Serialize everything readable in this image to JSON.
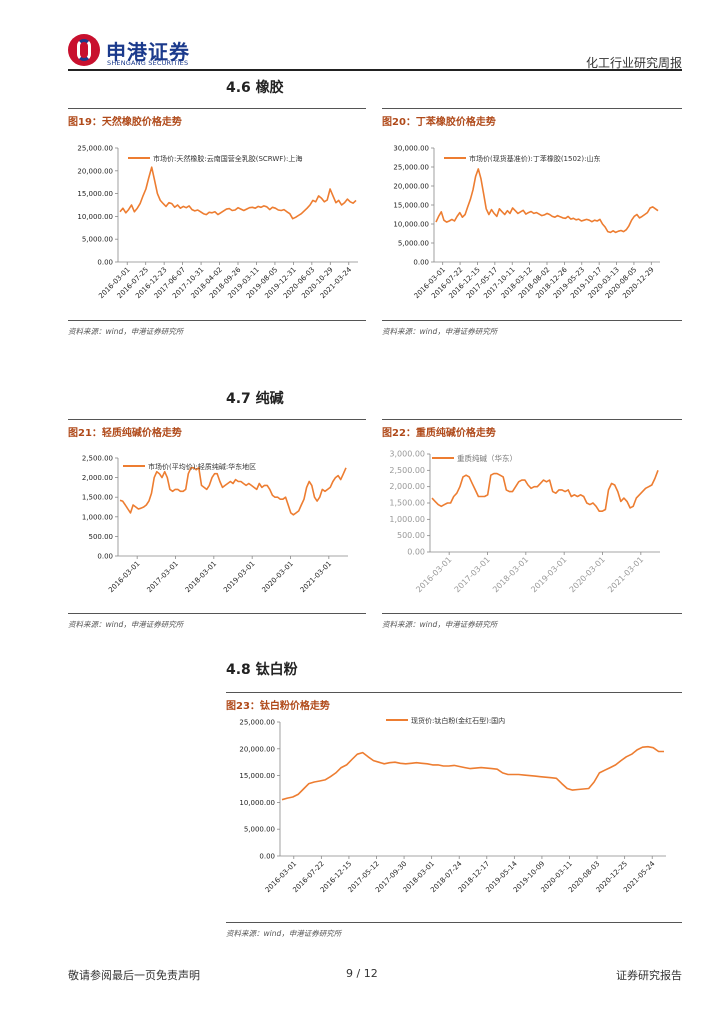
{
  "header": {
    "company_cn": "申港证券",
    "company_en": "SHENGANG SECURITIES",
    "report_type": "化工行业研究周报"
  },
  "sections": {
    "s46": "4.6 橡胶",
    "s47": "4.7 纯碱",
    "s48": "4.8 钛白粉"
  },
  "colors": {
    "line": "#ed7d31",
    "title": "#b04a1a"
  },
  "figures": {
    "f19": {
      "title": "图19：天然橡胶价格走势",
      "source": "资料来源：wind，申港证券研究所"
    },
    "f20": {
      "title": "图20：丁苯橡胶价格走势",
      "source": "资料来源：wind，申港证券研究所"
    },
    "f21": {
      "title": "图21：轻质纯碱价格走势",
      "source": "资料来源：wind，申港证券研究所"
    },
    "f22": {
      "title": "图22：重质纯碱价格走势",
      "source": "资料来源：wind，申港证券研究所"
    },
    "f23": {
      "title": "图23：钛白粉价格走势",
      "source": "资料来源：wind，申港证券研究所"
    }
  },
  "chart_data": [
    {
      "id": "c19",
      "type": "line",
      "legend": "市场价:天然橡胶:云南国营全乳胶(SCRWF):上海",
      "ylim": [
        0,
        25000
      ],
      "yticks": [
        "0.00",
        "5,000.00",
        "10,000.00",
        "15,000.00",
        "20,000.00",
        "25,000.00"
      ],
      "xticks": [
        "2016-03-01",
        "2016-07-25",
        "2016-12-23",
        "2017-06-07",
        "2017-10-31",
        "2018-04-02",
        "2018-09-26",
        "2019-03-11",
        "2019-08-05",
        "2019-12-31",
        "2020-06-03",
        "2020-10-29",
        "2021-03-24"
      ],
      "values": [
        11000,
        11800,
        10800,
        11500,
        12500,
        11000,
        11800,
        12800,
        14500,
        16000,
        18500,
        20800,
        18000,
        15000,
        13500,
        12800,
        12200,
        13000,
        12800,
        12000,
        12500,
        11800,
        12200,
        11900,
        12300,
        11500,
        11200,
        11400,
        11000,
        10600,
        10400,
        10900,
        10800,
        11000,
        10400,
        10800,
        11200,
        11600,
        11700,
        11300,
        11400,
        11900,
        11600,
        11300,
        11600,
        11900,
        12000,
        11800,
        12200,
        12000,
        12300,
        12100,
        11500,
        12000,
        11800,
        11400,
        11300,
        11500,
        11000,
        10600,
        9500,
        9800,
        10200,
        10600,
        11200,
        11800,
        12500,
        13500,
        13200,
        14500,
        14000,
        13200,
        13600,
        16000,
        14500,
        13000,
        13500,
        12500,
        13000,
        13800,
        13200,
        12900,
        13500
      ]
    },
    {
      "id": "c20",
      "type": "line",
      "legend": "市场价(现货基准价):丁苯橡胶(1502):山东",
      "ylim": [
        0,
        30000
      ],
      "yticks": [
        "0.00",
        "5,000.00",
        "10,000.00",
        "15,000.00",
        "20,000.00",
        "25,000.00",
        "30,000.00"
      ],
      "xticks": [
        "2016-03-01",
        "2016-07-22",
        "2016-12-15",
        "2017-05-17",
        "2017-10-11",
        "2018-03-12",
        "2018-08-02",
        "2018-12-26",
        "2019-05-23",
        "2019-10-17",
        "2020-03-13",
        "2020-08-05",
        "2020-12-29"
      ],
      "values": [
        10500,
        12000,
        13200,
        11000,
        10500,
        10800,
        11200,
        10800,
        12000,
        13000,
        11800,
        12500,
        14500,
        16500,
        19000,
        22500,
        24500,
        22000,
        18000,
        14000,
        12500,
        13800,
        12800,
        12000,
        14000,
        13200,
        12500,
        13500,
        12800,
        14200,
        13500,
        12800,
        13200,
        13600,
        12600,
        13000,
        13300,
        12800,
        13000,
        12600,
        12200,
        12400,
        12800,
        12500,
        12000,
        11800,
        12200,
        11900,
        11600,
        11500,
        12000,
        11300,
        11500,
        11100,
        11300,
        10800,
        11000,
        11200,
        11000,
        10600,
        11000,
        10800,
        11200,
        10000,
        9200,
        8000,
        7800,
        8200,
        7800,
        8100,
        8300,
        8000,
        8500,
        9500,
        11000,
        12000,
        12500,
        11600,
        12000,
        12500,
        13000,
        14200,
        14500,
        14000,
        13500
      ]
    },
    {
      "id": "c21",
      "type": "line",
      "legend": "市场价(平均价):轻质纯碱:华东地区",
      "ylim": [
        0,
        2500
      ],
      "yticks": [
        "0.00",
        "500.00",
        "1,000.00",
        "1,500.00",
        "2,000.00",
        "2,500.00"
      ],
      "xticks": [
        "2016-03-01",
        "2017-03-01",
        "2018-03-01",
        "2019-03-01",
        "2020-03-01",
        "2021-03-01"
      ],
      "values": [
        1420,
        1400,
        1300,
        1200,
        1100,
        1300,
        1250,
        1200,
        1220,
        1250,
        1300,
        1400,
        1600,
        2000,
        2150,
        2100,
        2000,
        2150,
        2000,
        1700,
        1650,
        1700,
        1700,
        1650,
        1650,
        1700,
        2100,
        2250,
        2250,
        2200,
        2250,
        1800,
        1750,
        1700,
        1800,
        2000,
        2100,
        2100,
        1900,
        1750,
        1800,
        1850,
        1900,
        1850,
        1950,
        1900,
        1900,
        1850,
        1800,
        1850,
        1800,
        1750,
        1700,
        1850,
        1750,
        1800,
        1800,
        1700,
        1550,
        1500,
        1500,
        1450,
        1450,
        1500,
        1300,
        1100,
        1050,
        1100,
        1150,
        1300,
        1450,
        1750,
        1900,
        1800,
        1500,
        1400,
        1500,
        1700,
        1650,
        1700,
        1750,
        1900,
        2000,
        2050,
        1950,
        2100,
        2250
      ]
    },
    {
      "id": "c22",
      "type": "line",
      "legend": "重质纯碱（华东）",
      "ylim": [
        0,
        3000
      ],
      "yticks": [
        "0.00",
        "500.00",
        "1,000.00",
        "1,500.00",
        "2,000.00",
        "2,500.00",
        "3,000.00"
      ],
      "xticks": [
        "2016-03-01",
        "2017-03-01",
        "2018-03-01",
        "2019-03-01",
        "2020-03-01",
        "2021-03-01"
      ],
      "values": [
        1650,
        1550,
        1450,
        1400,
        1450,
        1500,
        1500,
        1700,
        1800,
        2000,
        2300,
        2350,
        2300,
        2100,
        1900,
        1700,
        1700,
        1700,
        1750,
        2350,
        2400,
        2400,
        2350,
        2300,
        1900,
        1850,
        1850,
        2000,
        2150,
        2200,
        2200,
        2050,
        1950,
        2000,
        2000,
        2100,
        2200,
        2150,
        2200,
        1850,
        1800,
        1900,
        1900,
        1850,
        1900,
        1700,
        1750,
        1700,
        1750,
        1700,
        1500,
        1450,
        1500,
        1400,
        1250,
        1250,
        1300,
        1900,
        2100,
        2050,
        1850,
        1550,
        1650,
        1550,
        1350,
        1400,
        1650,
        1750,
        1850,
        1950,
        2000,
        2050,
        2250,
        2500
      ]
    },
    {
      "id": "c23",
      "type": "line",
      "legend": "现货价:钛白粉(金红石型):国内",
      "ylim": [
        0,
        25000
      ],
      "yticks": [
        "0.00",
        "5,000.00",
        "10,000.00",
        "15,000.00",
        "20,000.00",
        "25,000.00"
      ],
      "xticks": [
        "2016-03-01",
        "2016-07-22",
        "2016-12-15",
        "2017-05-12",
        "2017-09-30",
        "2018-03-01",
        "2018-07-24",
        "2018-12-17",
        "2019-05-14",
        "2019-10-09",
        "2020-03-11",
        "2020-08-03",
        "2020-12-25",
        "2021-05-24"
      ],
      "values": [
        10500,
        10800,
        11000,
        11500,
        12500,
        13500,
        13800,
        14000,
        14200,
        14800,
        15500,
        16500,
        17000,
        18000,
        19000,
        19300,
        18500,
        17800,
        17500,
        17200,
        17400,
        17500,
        17300,
        17200,
        17300,
        17400,
        17300,
        17200,
        17000,
        17000,
        16800,
        16800,
        16900,
        16700,
        16500,
        16300,
        16400,
        16500,
        16400,
        16300,
        16200,
        15500,
        15200,
        15200,
        15200,
        15100,
        15000,
        14900,
        14800,
        14700,
        14600,
        14500,
        13500,
        12600,
        12300,
        12400,
        12500,
        12600,
        13800,
        15500,
        16000,
        16500,
        17000,
        17800,
        18500,
        19000,
        19800,
        20300,
        20400,
        20200,
        19500,
        19500
      ]
    }
  ],
  "footer": {
    "disclaimer": "敬请参阅最后一页免责声明",
    "page": "9 / 12",
    "doc_type": "证券研究报告"
  }
}
